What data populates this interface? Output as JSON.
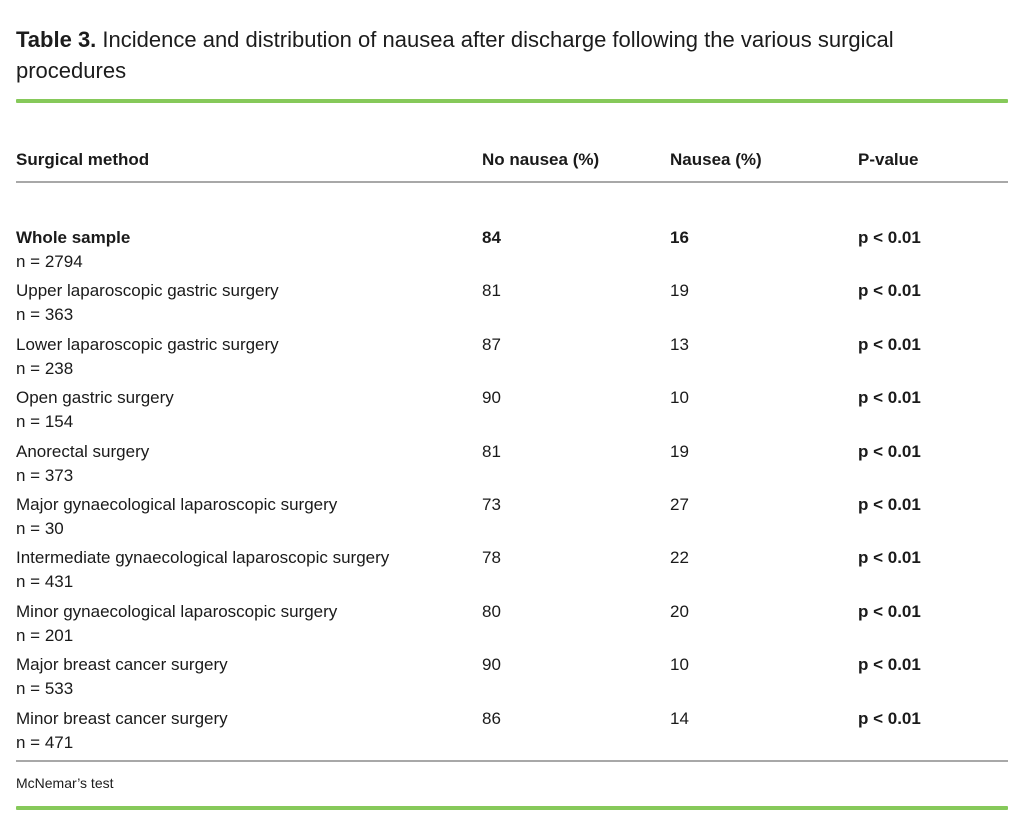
{
  "title": {
    "label": "Table 3.",
    "text": "Incidence and distribution of nausea after discharge following the various surgical procedures"
  },
  "table": {
    "columns": [
      "Surgical method",
      "No nausea (%)",
      "Nausea (%)",
      "P-value"
    ],
    "rows": [
      {
        "method": "Whole sample",
        "n": "n = 2794",
        "no_nausea": "84",
        "nausea": "16",
        "p_value": "p < 0.01",
        "emphasis": true
      },
      {
        "method": "Upper laparoscopic gastric surgery",
        "n": "n = 363",
        "no_nausea": "81",
        "nausea": "19",
        "p_value": "p < 0.01",
        "emphasis": false
      },
      {
        "method": "Lower laparoscopic gastric surgery",
        "n": "n = 238",
        "no_nausea": "87",
        "nausea": "13",
        "p_value": "p < 0.01",
        "emphasis": false
      },
      {
        "method": "Open gastric surgery",
        "n": "n = 154",
        "no_nausea": "90",
        "nausea": "10",
        "p_value": "p < 0.01",
        "emphasis": false
      },
      {
        "method": "Anorectal surgery",
        "n": "n = 373",
        "no_nausea": "81",
        "nausea": "19",
        "p_value": "p < 0.01",
        "emphasis": false
      },
      {
        "method": "Major gynaecological laparoscopic surgery",
        "n": "n = 30",
        "no_nausea": "73",
        "nausea": "27",
        "p_value": "p < 0.01",
        "emphasis": false
      },
      {
        "method": "Intermediate gynaecological laparoscopic surgery",
        "n": "n = 431",
        "no_nausea": "78",
        "nausea": "22",
        "p_value": "p < 0.01",
        "emphasis": false
      },
      {
        "method": "Minor gynaecological laparoscopic surgery",
        "n": "n = 201",
        "no_nausea": "80",
        "nausea": "20",
        "p_value": "p < 0.01",
        "emphasis": false
      },
      {
        "method": "Major breast cancer surgery",
        "n": "n = 533",
        "no_nausea": "90",
        "nausea": "10",
        "p_value": "p < 0.01",
        "emphasis": false
      },
      {
        "method": "Minor breast cancer surgery",
        "n": "n = 471",
        "no_nausea": "86",
        "nausea": "14",
        "p_value": "p < 0.01",
        "emphasis": false
      }
    ],
    "footnote": "McNemar’s test"
  },
  "colors": {
    "accent_green": "#86c95a",
    "rule_gray": "#a8a8a8",
    "text": "#1a1a1a"
  }
}
